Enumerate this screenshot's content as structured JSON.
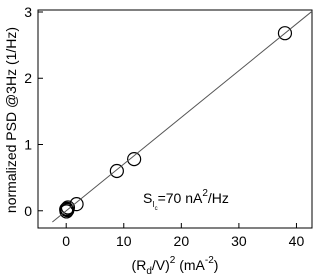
{
  "chart_data": {
    "type": "scatter",
    "x_label": [
      "(R",
      "d",
      "/V)",
      "2",
      " (mA",
      "-2",
      ")"
    ],
    "y_label": "normalized PSD @3Hz (1/Hz)",
    "annotation": [
      "S",
      "I",
      "c",
      "=70 nA",
      "2",
      "/Hz"
    ],
    "series": [
      {
        "color": "#000000",
        "x": [
          38,
          11.8,
          8.8,
          1.8,
          0.1,
          0.2,
          0.05,
          0.3,
          0.0
        ],
        "values": [
          2.68,
          0.78,
          0.6,
          0.1,
          0.03,
          0.01,
          -0.01,
          0.05,
          0.02
        ]
      },
      {
        "color": "#555555",
        "line": true,
        "x": [
          -2.4,
          42.7
        ],
        "values": [
          -0.17,
          3.01
        ]
      }
    ],
    "xlim": [
      -4.9,
      42.7
    ],
    "xticks": [
      0,
      10,
      20,
      30,
      40
    ],
    "ylim": [
      -0.26,
      3.03
    ],
    "yticks": [
      0,
      1,
      2,
      3
    ]
  }
}
